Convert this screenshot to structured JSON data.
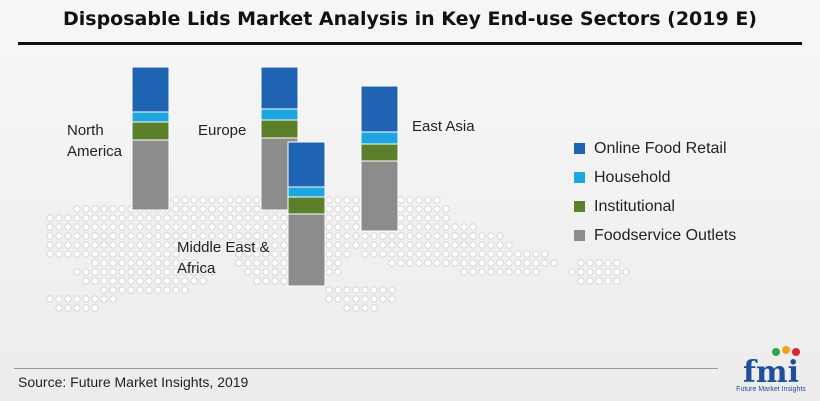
{
  "chart_data": {
    "type": "bar",
    "stacked": true,
    "title": "Disposable Lids Market Analysis in Key End-use Sectors (2019 E)",
    "source": "Source: Future Market Insights, 2019",
    "categories": [
      "North America",
      "Europe",
      "Middle East & Africa",
      "East Asia"
    ],
    "category_labels": [
      "North\nAmerica",
      "Europe",
      "Middle East &\nAfrica",
      "East Asia"
    ],
    "series": [
      {
        "name": "Foodservice Outlets",
        "color": "#8c8c8c",
        "values": [
          70,
          72,
          72,
          70
        ]
      },
      {
        "name": "Institutional",
        "color": "#5b7f2a",
        "values": [
          18,
          18,
          17,
          17
        ]
      },
      {
        "name": "Household",
        "color": "#1ea6e0",
        "values": [
          10,
          11,
          10,
          12
        ]
      },
      {
        "name": "Online Food Retail",
        "color": "#1f63b3",
        "values": [
          45,
          42,
          45,
          46
        ]
      }
    ],
    "legend": {
      "placement": "right",
      "order": [
        "Online Food Retail",
        "Household",
        "Institutional",
        "Foodservice Outlets"
      ]
    },
    "grid": false
  },
  "logo": {
    "text": "fmi",
    "subtitle": "Future Market Insights"
  }
}
